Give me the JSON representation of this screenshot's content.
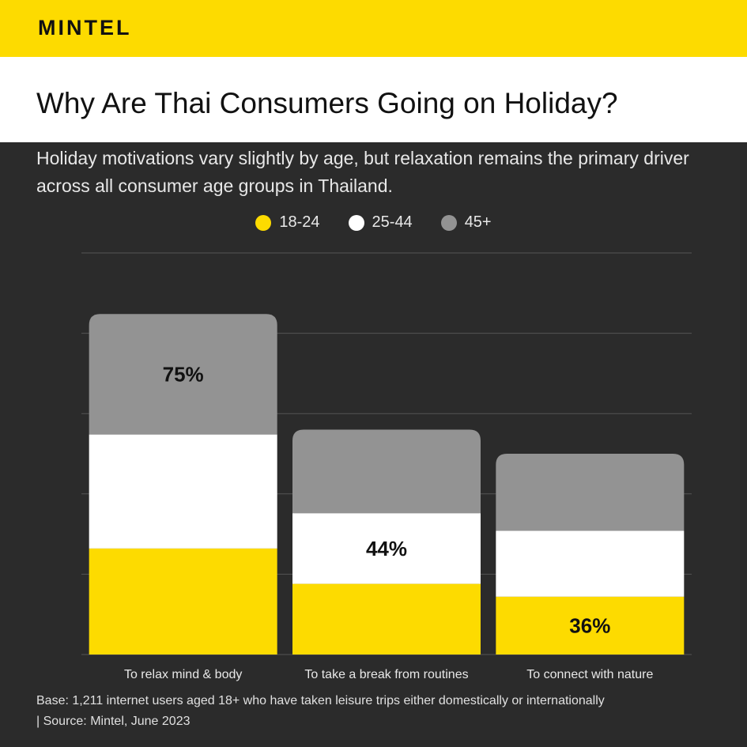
{
  "brand": "MINTEL",
  "title": "Why Are Thai Consumers Going on Holiday?",
  "subtitle": "Holiday motivations vary slightly by age, but relaxation remains the primary driver across all consumer age groups in Thailand.",
  "footnote": "Base: 1,211 internet users aged 18+ who have taken leisure trips either domestically or internationally | Source: Mintel, June 2023",
  "chart_data": {
    "type": "bar",
    "stacked": true,
    "categories": [
      "To relax mind & body",
      "To take a break from routines",
      "To connect with nature"
    ],
    "series": [
      {
        "name": "18-24",
        "color": "#fddb00",
        "values": [
          66,
          44,
          36
        ]
      },
      {
        "name": "25-44",
        "color": "#ffffff",
        "values": [
          71,
          44,
          41
        ]
      },
      {
        "name": "45+",
        "color": "#939393",
        "values": [
          75,
          52,
          48
        ]
      }
    ],
    "data_labels": [
      {
        "category": 0,
        "series": 2,
        "text": "75%"
      },
      {
        "category": 1,
        "series": 1,
        "text": "44%"
      },
      {
        "category": 2,
        "series": 0,
        "text": "36%"
      }
    ],
    "ylim": [
      0,
      250
    ],
    "grid": true,
    "legend": "top-center"
  }
}
